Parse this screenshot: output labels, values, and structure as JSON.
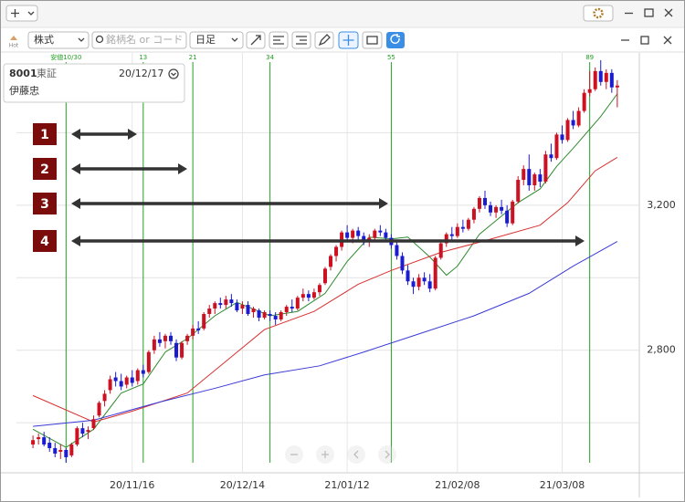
{
  "toolbar": {
    "market": "株式",
    "search_placeholder": "銘柄名 or コード",
    "period": "日足",
    "hot": "Hot"
  },
  "info": {
    "code": "8001",
    "exchange": "東証",
    "date": "20/12/17",
    "name": "伊藤忠"
  },
  "annotations": [
    "1",
    "2",
    "3",
    "4"
  ],
  "chart_data": {
    "type": "candlestick",
    "up_color": "#cc1122",
    "down_color": "#1b1bd0",
    "candles": [
      [
        2540,
        2565,
        2530,
        2552
      ],
      [
        2555,
        2570,
        2540,
        2560
      ],
      [
        2560,
        2575,
        2535,
        2540
      ],
      [
        2545,
        2560,
        2520,
        2530
      ],
      [
        2530,
        2545,
        2505,
        2515
      ],
      [
        2520,
        2540,
        2500,
        2525
      ],
      [
        2525,
        2530,
        2490,
        2505
      ],
      [
        2510,
        2545,
        2505,
        2540
      ],
      [
        2540,
        2590,
        2535,
        2585
      ],
      [
        2585,
        2600,
        2560,
        2570
      ],
      [
        2575,
        2590,
        2555,
        2580
      ],
      [
        2585,
        2620,
        2580,
        2610
      ],
      [
        2620,
        2660,
        2615,
        2655
      ],
      [
        2660,
        2690,
        2645,
        2680
      ],
      [
        2690,
        2730,
        2680,
        2720
      ],
      [
        2725,
        2740,
        2700,
        2715
      ],
      [
        2715,
        2735,
        2690,
        2700
      ],
      [
        2705,
        2730,
        2695,
        2725
      ],
      [
        2725,
        2745,
        2700,
        2710
      ],
      [
        2715,
        2750,
        2705,
        2745
      ],
      [
        2745,
        2760,
        2725,
        2735
      ],
      [
        2740,
        2800,
        2735,
        2795
      ],
      [
        2800,
        2840,
        2790,
        2830
      ],
      [
        2830,
        2850,
        2810,
        2820
      ],
      [
        2825,
        2845,
        2805,
        2840
      ],
      [
        2840,
        2850,
        2815,
        2825
      ],
      [
        2820,
        2830,
        2770,
        2780
      ],
      [
        2780,
        2825,
        2775,
        2820
      ],
      [
        2825,
        2845,
        2815,
        2840
      ],
      [
        2840,
        2870,
        2830,
        2860
      ],
      [
        2860,
        2880,
        2845,
        2855
      ],
      [
        2860,
        2905,
        2855,
        2900
      ],
      [
        2900,
        2925,
        2890,
        2915
      ],
      [
        2915,
        2935,
        2900,
        2930
      ],
      [
        2930,
        2945,
        2915,
        2925
      ],
      [
        2925,
        2950,
        2915,
        2940
      ],
      [
        2940,
        2955,
        2920,
        2930
      ],
      [
        2930,
        2940,
        2905,
        2910
      ],
      [
        2915,
        2935,
        2900,
        2925
      ],
      [
        2925,
        2935,
        2895,
        2900
      ],
      [
        2905,
        2920,
        2890,
        2915
      ],
      [
        2910,
        2915,
        2880,
        2890
      ],
      [
        2890,
        2910,
        2885,
        2905
      ],
      [
        2900,
        2910,
        2880,
        2895
      ],
      [
        2895,
        2905,
        2870,
        2885
      ],
      [
        2885,
        2910,
        2880,
        2905
      ],
      [
        2905,
        2925,
        2895,
        2920
      ],
      [
        2920,
        2940,
        2905,
        2915
      ],
      [
        2915,
        2950,
        2910,
        2945
      ],
      [
        2945,
        2970,
        2935,
        2955
      ],
      [
        2955,
        2965,
        2935,
        2945
      ],
      [
        2945,
        2970,
        2940,
        2960
      ],
      [
        2960,
        2985,
        2950,
        2980
      ],
      [
        2985,
        3030,
        2980,
        3025
      ],
      [
        3030,
        3065,
        3020,
        3060
      ],
      [
        3060,
        3090,
        3045,
        3085
      ],
      [
        3085,
        3130,
        3075,
        3125
      ],
      [
        3125,
        3145,
        3100,
        3110
      ],
      [
        3110,
        3135,
        3095,
        3130
      ],
      [
        3130,
        3140,
        3105,
        3115
      ],
      [
        3115,
        3125,
        3090,
        3100
      ],
      [
        3100,
        3120,
        3085,
        3110
      ],
      [
        3110,
        3135,
        3100,
        3130
      ],
      [
        3130,
        3145,
        3115,
        3125
      ],
      [
        3125,
        3135,
        3100,
        3110
      ],
      [
        3110,
        3120,
        3080,
        3090
      ],
      [
        3090,
        3100,
        3050,
        3060
      ],
      [
        3060,
        3070,
        3010,
        3020
      ],
      [
        3020,
        3035,
        2980,
        2990
      ],
      [
        2990,
        3000,
        2955,
        2975
      ],
      [
        2975,
        3010,
        2965,
        3000
      ],
      [
        3000,
        3015,
        2980,
        2990
      ],
      [
        2990,
        3010,
        2960,
        2970
      ],
      [
        2970,
        3060,
        2965,
        3055
      ],
      [
        3055,
        3100,
        3050,
        3095
      ],
      [
        3095,
        3125,
        3085,
        3120
      ],
      [
        3120,
        3140,
        3105,
        3115
      ],
      [
        3115,
        3150,
        3110,
        3140
      ],
      [
        3140,
        3160,
        3125,
        3135
      ],
      [
        3135,
        3165,
        3130,
        3160
      ],
      [
        3160,
        3195,
        3150,
        3190
      ],
      [
        3190,
        3225,
        3180,
        3220
      ],
      [
        3220,
        3240,
        3190,
        3200
      ],
      [
        3200,
        3210,
        3170,
        3180
      ],
      [
        3180,
        3200,
        3165,
        3195
      ],
      [
        3195,
        3215,
        3175,
        3185
      ],
      [
        3185,
        3200,
        3140,
        3150
      ],
      [
        3150,
        3215,
        3145,
        3210
      ],
      [
        3210,
        3280,
        3205,
        3270
      ],
      [
        3270,
        3310,
        3255,
        3300
      ],
      [
        3300,
        3340,
        3240,
        3255
      ],
      [
        3255,
        3290,
        3240,
        3285
      ],
      [
        3285,
        3300,
        3250,
        3265
      ],
      [
        3265,
        3350,
        3260,
        3340
      ],
      [
        3340,
        3370,
        3320,
        3330
      ],
      [
        3330,
        3400,
        3325,
        3395
      ],
      [
        3395,
        3420,
        3370,
        3380
      ],
      [
        3380,
        3440,
        3375,
        3435
      ],
      [
        3435,
        3460,
        3410,
        3420
      ],
      [
        3420,
        3470,
        3415,
        3460
      ],
      [
        3460,
        3520,
        3455,
        3510
      ],
      [
        3510,
        3570,
        3500,
        3520
      ],
      [
        3520,
        3580,
        3515,
        3570
      ],
      [
        3570,
        3600,
        3530,
        3540
      ],
      [
        3540,
        3575,
        3520,
        3565
      ],
      [
        3565,
        3575,
        3510,
        3525
      ],
      [
        3525,
        3545,
        3470,
        3530
      ]
    ],
    "lines": [
      {
        "color": "#2e8b2e",
        "x": [
          0,
          6,
          11,
          16,
          20,
          24,
          28,
          33,
          37,
          43,
          48,
          53,
          57,
          61,
          65,
          68,
          72,
          75,
          77,
          81,
          85,
          88,
          92,
          95,
          98,
          103,
          106
        ],
        "values": [
          2582,
          2532,
          2582,
          2682,
          2707,
          2795,
          2832,
          2895,
          2932,
          2895,
          2907,
          2957,
          3045,
          3112,
          3107,
          3112,
          3057,
          3007,
          3032,
          3120,
          3170,
          3207,
          3245,
          3307,
          3357,
          3445,
          3507
        ]
      },
      {
        "color": "#d83030",
        "x": [
          0,
          11,
          18,
          28,
          36,
          42,
          51,
          59,
          65,
          74,
          82,
          92,
          97,
          102,
          106
        ],
        "values": [
          2675,
          2602,
          2632,
          2682,
          2782,
          2857,
          2907,
          2982,
          3020,
          3070,
          3102,
          3145,
          3207,
          3295,
          3332
        ]
      },
      {
        "color": "#3a3ad8",
        "x": [
          0,
          11,
          23,
          33,
          42,
          52,
          60,
          70,
          80,
          90,
          98,
          106
        ],
        "values": [
          2590,
          2607,
          2657,
          2695,
          2732,
          2757,
          2795,
          2845,
          2895,
          2957,
          3032,
          3100
        ]
      }
    ],
    "fib_lines": [
      {
        "index": 6,
        "label": "安値10/30"
      },
      {
        "index": 20,
        "label": "13"
      },
      {
        "index": 29,
        "label": "21"
      },
      {
        "index": 43,
        "label": "34"
      },
      {
        "index": 65,
        "label": "55"
      },
      {
        "index": 101,
        "label": "89"
      }
    ],
    "fib_color": "#22a022",
    "xlim": [
      -3,
      110
    ],
    "xticks": [
      {
        "value": 18,
        "label": "20/11/16"
      },
      {
        "value": 38,
        "label": "20/12/14"
      },
      {
        "value": 57,
        "label": "21/01/12"
      },
      {
        "value": 77,
        "label": "21/02/08"
      },
      {
        "value": 96,
        "label": "21/03/08"
      }
    ],
    "ylim": [
      2462,
      3620
    ],
    "yticks": [
      {
        "value": 2800,
        "label": "2,800"
      },
      {
        "value": 3200,
        "label": "3,200"
      }
    ],
    "ygrid": [
      2600,
      3000,
      3400
    ],
    "grid": true
  }
}
